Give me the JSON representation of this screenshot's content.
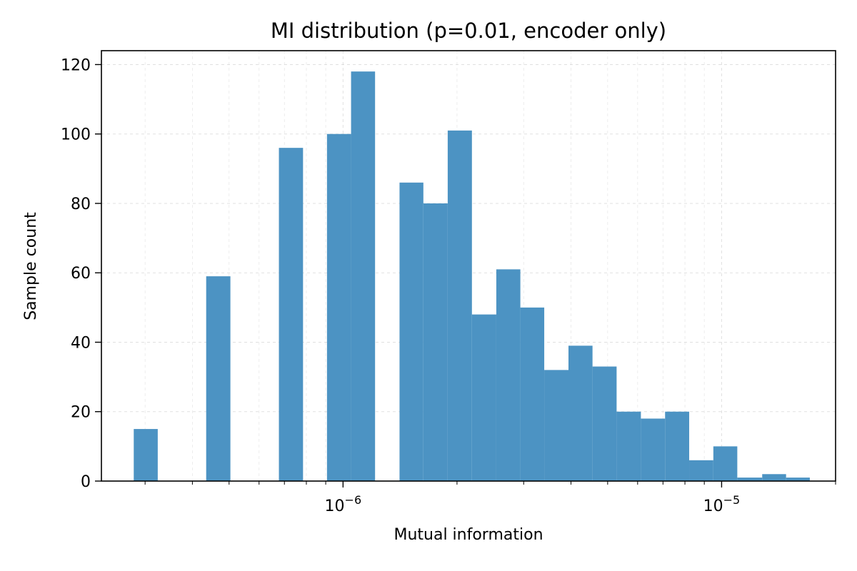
{
  "chart_data": {
    "type": "bar",
    "title": "MI distribution (p=0.01, encoder only)",
    "xlabel": "Mutual information",
    "ylabel": "Sample count",
    "x_scale": "log",
    "xlim": [
      2.3e-07,
      2e-05
    ],
    "ylim": [
      0,
      124
    ],
    "grid": true,
    "bar_color": "#4c93c3",
    "x_ticks": [
      {
        "value": 1e-06,
        "base": "10",
        "exp": "−6"
      },
      {
        "value": 1e-05,
        "base": "10",
        "exp": "−5"
      }
    ],
    "y_ticks": [
      0,
      20,
      40,
      60,
      80,
      100,
      120
    ],
    "bins": [
      {
        "x0": 2.8e-07,
        "x1": 3.24e-07,
        "count": 15
      },
      {
        "x0": 4.35e-07,
        "x1": 5.04e-07,
        "count": 59
      },
      {
        "x0": 6.77e-07,
        "x1": 7.84e-07,
        "count": 96
      },
      {
        "x0": 9.07e-07,
        "x1": 1.05e-06,
        "count": 100
      },
      {
        "x0": 1.05e-06,
        "x1": 1.215e-06,
        "count": 118
      },
      {
        "x0": 1.41e-06,
        "x1": 1.63e-06,
        "count": 86
      },
      {
        "x0": 1.63e-06,
        "x1": 1.89e-06,
        "count": 80
      },
      {
        "x0": 1.89e-06,
        "x1": 2.19e-06,
        "count": 101
      },
      {
        "x0": 2.19e-06,
        "x1": 2.54e-06,
        "count": 48
      },
      {
        "x0": 2.54e-06,
        "x1": 2.94e-06,
        "count": 61
      },
      {
        "x0": 2.94e-06,
        "x1": 3.4e-06,
        "count": 50
      },
      {
        "x0": 3.4e-06,
        "x1": 3.94e-06,
        "count": 32
      },
      {
        "x0": 3.94e-06,
        "x1": 4.56e-06,
        "count": 39
      },
      {
        "x0": 4.56e-06,
        "x1": 5.28e-06,
        "count": 33
      },
      {
        "x0": 5.28e-06,
        "x1": 6.12e-06,
        "count": 20
      },
      {
        "x0": 6.12e-06,
        "x1": 7.09e-06,
        "count": 18
      },
      {
        "x0": 7.09e-06,
        "x1": 8.21e-06,
        "count": 20
      },
      {
        "x0": 8.21e-06,
        "x1": 9.51e-06,
        "count": 6
      },
      {
        "x0": 9.51e-06,
        "x1": 1.1e-05,
        "count": 10
      },
      {
        "x0": 1.1e-05,
        "x1": 1.28e-05,
        "count": 1
      },
      {
        "x0": 1.28e-05,
        "x1": 1.48e-05,
        "count": 2
      },
      {
        "x0": 1.48e-05,
        "x1": 1.71e-05,
        "count": 1
      }
    ]
  }
}
